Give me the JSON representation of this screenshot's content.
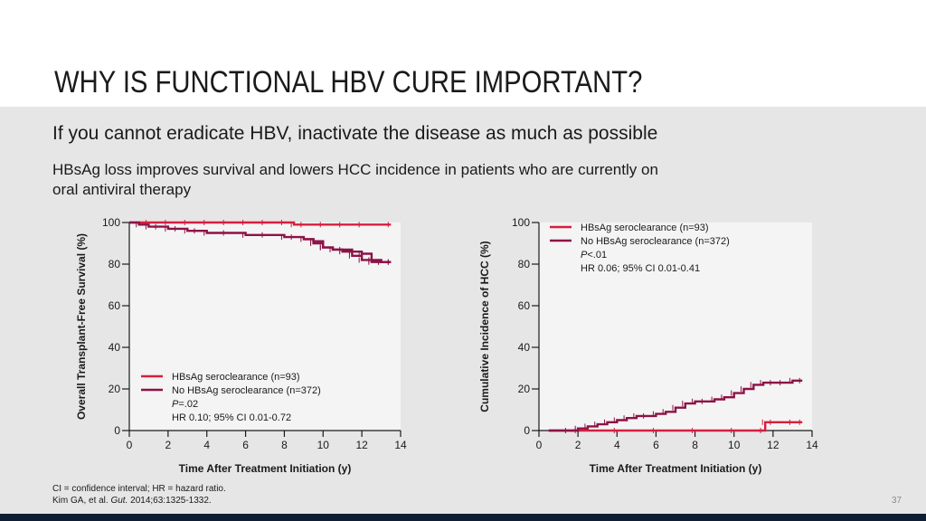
{
  "header": {
    "title": "WHY IS FUNCTIONAL HBV CURE IMPORTANT?"
  },
  "content": {
    "subtitle": "If you cannot eradicate HBV, inactivate the disease as much as possible",
    "line1": "HBsAg loss improves survival and lowers HCC incidence in patients who are currently on",
    "line2": "oral antiviral therapy"
  },
  "footnote": {
    "line1": "CI = confidence interval; HR = hazard ratio.",
    "cite_pre": "Kim GA, et al. ",
    "cite_journal": "Gut.",
    "cite_post": " 2014;63:1325-1332."
  },
  "page_number": "37",
  "colors": {
    "seroclearance": "#d41f3e",
    "no_seroclearance": "#8c1246",
    "background_band": "#e6e6e6",
    "footer": "#0f1e33"
  },
  "chart_data": [
    {
      "type": "line",
      "ylabel": "Overall Transplant-Free Survival (%)",
      "xlabel": "Time After Treatment Initiation (y)",
      "xlim": [
        0,
        14
      ],
      "ylim": [
        0,
        100
      ],
      "xticks": [
        "0",
        "2",
        "4",
        "6",
        "8",
        "10",
        "12",
        "14"
      ],
      "yticks": [
        "0",
        "20",
        "40",
        "60",
        "80",
        "100"
      ],
      "legend": {
        "entries": [
          "HBsAg seroclearance (n=93)",
          "No HBsAg seroclearance (n=372)"
        ],
        "p_prefix": "P",
        "p_value": "=.02",
        "hr": "HR 0.10; 95% CI 0.01-0.72"
      },
      "series": [
        {
          "name": "HBsAg seroclearance (n=93)",
          "color": "#d41f3e",
          "x": [
            0,
            1,
            2,
            3,
            4,
            5,
            6,
            7,
            8,
            8.5,
            9,
            10,
            11,
            12,
            13.5
          ],
          "y": [
            100,
            100,
            100,
            100,
            100,
            100,
            100,
            100,
            100,
            99,
            99,
            99,
            99,
            99,
            99
          ]
        },
        {
          "name": "No HBsAg seroclearance (n=372)",
          "color": "#8c1246",
          "x": [
            0,
            0.5,
            1,
            1.5,
            2,
            2.5,
            3,
            3.5,
            4,
            5,
            6,
            7,
            8,
            8.5,
            9,
            9.5,
            10,
            10.5,
            11,
            11.5,
            12,
            12.5,
            13,
            13.5
          ],
          "y": [
            100,
            99,
            98,
            98,
            97,
            97,
            96,
            96,
            95,
            95,
            94,
            94,
            93,
            93,
            92,
            91,
            88,
            87,
            87,
            86,
            85,
            82,
            81,
            81
          ]
        },
        {
          "name": "",
          "color": "#8c1246",
          "x": [
            9,
            9.5,
            10,
            10.5,
            11,
            11.5,
            12,
            12.5,
            13,
            13.5
          ],
          "y": [
            92,
            90,
            88,
            87,
            86,
            84,
            82,
            81,
            81,
            81
          ]
        }
      ]
    },
    {
      "type": "line",
      "ylabel": "Cumulative Incidence of HCC (%)",
      "xlabel": "Time After Treatment Initiation (y)",
      "xlim": [
        0,
        14
      ],
      "ylim": [
        0,
        100
      ],
      "xticks": [
        "0",
        "2",
        "4",
        "6",
        "8",
        "10",
        "12",
        "14"
      ],
      "yticks": [
        "0",
        "20",
        "40",
        "60",
        "80",
        "100"
      ],
      "legend": {
        "entries": [
          "HBsAg seroclearance (n=93)",
          "No HBsAg seroclearance (n=372)"
        ],
        "p_prefix": "P",
        "p_value": "<.01",
        "hr": "HR 0.06; 95% CI 0.01-0.41"
      },
      "series": [
        {
          "name": "HBsAg seroclearance (n=93)",
          "color": "#d41f3e",
          "x": [
            0.5,
            2,
            4,
            6,
            8,
            10,
            11.5,
            11.6,
            12,
            13,
            13.5
          ],
          "y": [
            0,
            0,
            0,
            0,
            0,
            0,
            0,
            4,
            4,
            4,
            4
          ]
        },
        {
          "name": "No HBsAg seroclearance (n=372)",
          "color": "#8c1246",
          "x": [
            0.5,
            1.5,
            2,
            2.5,
            3,
            3.5,
            4,
            4.5,
            5,
            5.5,
            6,
            6.5,
            7,
            7.5,
            8,
            8.5,
            9,
            9.5,
            10,
            10.5,
            11,
            11.5,
            12,
            12.5,
            13,
            13.5
          ],
          "y": [
            0,
            0,
            1,
            2,
            3,
            4,
            5,
            6,
            7,
            7,
            8,
            9,
            11,
            13,
            14,
            14,
            15,
            16,
            18,
            20,
            22,
            23,
            23,
            23,
            24,
            24
          ]
        }
      ]
    }
  ]
}
